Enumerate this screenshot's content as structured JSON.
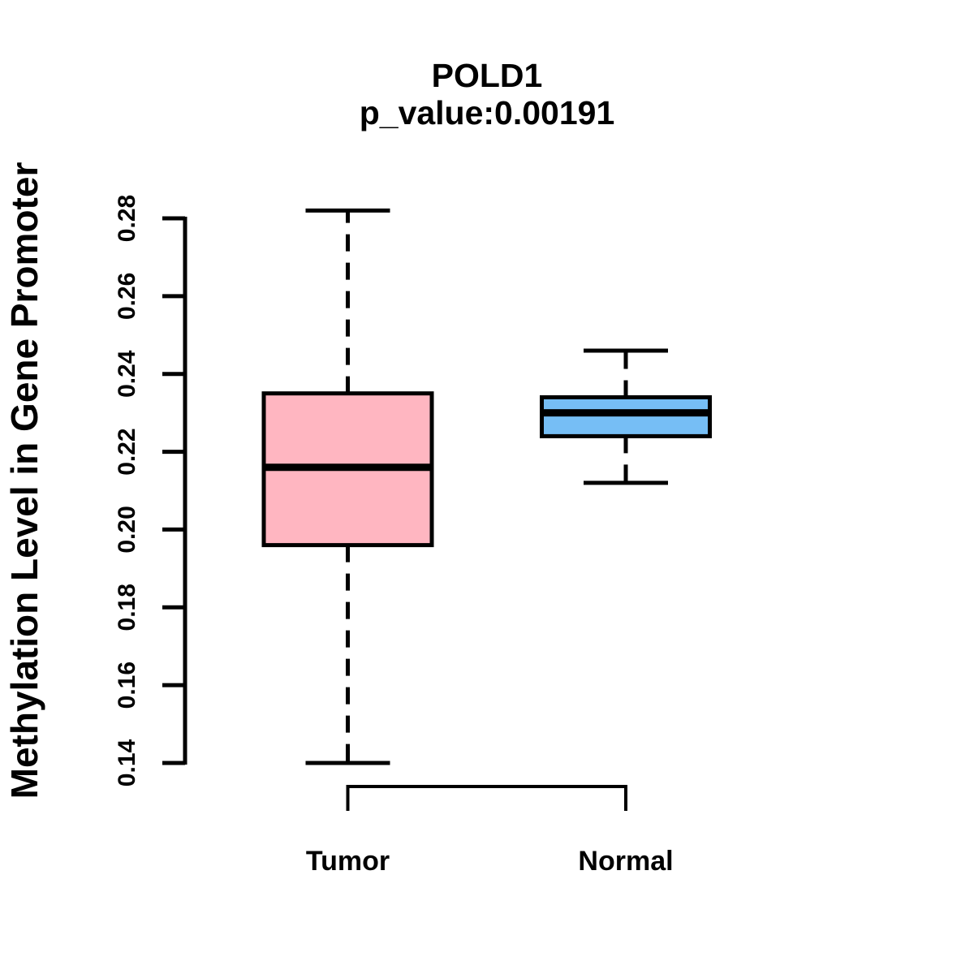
{
  "header": {
    "title": "POLD1",
    "subtitle": "p_value:0.00191"
  },
  "colors": {
    "background": "#FFFFFF",
    "axis_stroke": "#000000",
    "box_stroke": "#000000",
    "median_stroke": "#000000",
    "tumor_fill": "#FFB6C1",
    "normal_fill": "#76BEF5"
  },
  "chart_data": {
    "type": "boxplot",
    "title": "POLD1",
    "subtitle": "p_value:0.00191",
    "xlabel": "",
    "ylabel": "Methylation Level in Gene Promoter",
    "ylim": [
      0.14,
      0.28
    ],
    "yticks": [
      0.14,
      0.16,
      0.18,
      0.2,
      0.22,
      0.24,
      0.26,
      0.28
    ],
    "ytick_labels": [
      "0.14",
      "0.16",
      "0.18",
      "0.20",
      "0.22",
      "0.24",
      "0.26",
      "0.28"
    ],
    "grid": false,
    "legend_position": "none",
    "categories": [
      "Tumor",
      "Normal"
    ],
    "groups": [
      {
        "label": "Tumor",
        "fill": "#FFB6C1",
        "stats": {
          "whisker_low": 0.14,
          "q1": 0.196,
          "median": 0.216,
          "q3": 0.235,
          "whisker_high": 0.282
        }
      },
      {
        "label": "Normal",
        "fill": "#76BEF5",
        "stats": {
          "whisker_low": 0.212,
          "q1": 0.224,
          "median": 0.23,
          "q3": 0.234,
          "whisker_high": 0.246
        }
      }
    ]
  }
}
